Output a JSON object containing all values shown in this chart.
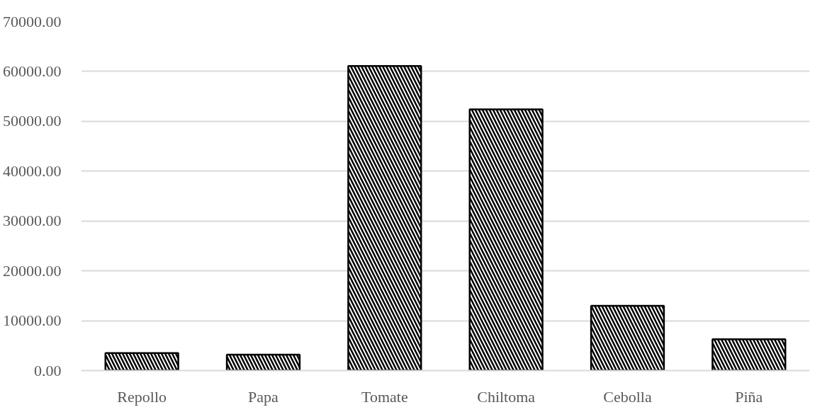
{
  "chart_data": {
    "type": "bar",
    "categories": [
      "Repollo",
      "Papa",
      "Tomate",
      "Chiltoma",
      "Cebolla",
      "Piña"
    ],
    "values": [
      3500,
      3200,
      61100,
      52400,
      13000,
      6300
    ],
    "color": "#000000",
    "ylim": [
      0,
      70000
    ],
    "yticks": [
      {
        "value": 0,
        "label": "0.00"
      },
      {
        "value": 10000,
        "label": "10000.00"
      },
      {
        "value": 20000,
        "label": "20000.00"
      },
      {
        "value": 30000,
        "label": "30000.00"
      },
      {
        "value": 40000,
        "label": "40000.00"
      },
      {
        "value": 50000,
        "label": "50000.00"
      },
      {
        "value": 60000,
        "label": "60000.00"
      },
      {
        "value": 70000,
        "label": "70000.00"
      }
    ],
    "grid": "y"
  }
}
